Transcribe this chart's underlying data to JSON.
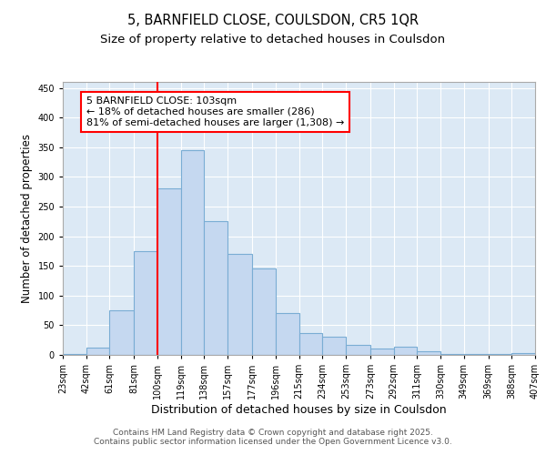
{
  "title1": "5, BARNFIELD CLOSE, COULSDON, CR5 1QR",
  "title2": "Size of property relative to detached houses in Coulsdon",
  "xlabel": "Distribution of detached houses by size in Coulsdon",
  "ylabel": "Number of detached properties",
  "bar_values": [
    2,
    12,
    75,
    175,
    280,
    345,
    225,
    170,
    145,
    70,
    37,
    30,
    17,
    11,
    14,
    6,
    1,
    1,
    1,
    3
  ],
  "bin_edges": [
    23,
    42,
    61,
    81,
    100,
    119,
    138,
    157,
    177,
    196,
    215,
    234,
    253,
    273,
    292,
    311,
    330,
    349,
    369,
    388,
    407
  ],
  "tick_labels": [
    "23sqm",
    "42sqm",
    "61sqm",
    "81sqm",
    "100sqm",
    "119sqm",
    "138sqm",
    "157sqm",
    "177sqm",
    "196sqm",
    "215sqm",
    "234sqm",
    "253sqm",
    "273sqm",
    "292sqm",
    "311sqm",
    "330sqm",
    "349sqm",
    "369sqm",
    "388sqm",
    "407sqm"
  ],
  "bar_color": "#c5d8f0",
  "bar_edge_color": "#7aadd4",
  "property_line_x": 100,
  "property_line_color": "red",
  "annotation_text": "5 BARNFIELD CLOSE: 103sqm\n← 18% of detached houses are smaller (286)\n81% of semi-detached houses are larger (1,308) →",
  "annotation_box_color": "white",
  "annotation_box_edge_color": "red",
  "ylim": [
    0,
    460
  ],
  "yticks": [
    0,
    50,
    100,
    150,
    200,
    250,
    300,
    350,
    400,
    450
  ],
  "background_color": "#dce9f5",
  "footer_text": "Contains HM Land Registry data © Crown copyright and database right 2025.\nContains public sector information licensed under the Open Government Licence v3.0.",
  "title1_fontsize": 10.5,
  "title2_fontsize": 9.5,
  "xlabel_fontsize": 9,
  "ylabel_fontsize": 8.5,
  "tick_fontsize": 7,
  "annotation_fontsize": 8,
  "footer_fontsize": 6.5
}
